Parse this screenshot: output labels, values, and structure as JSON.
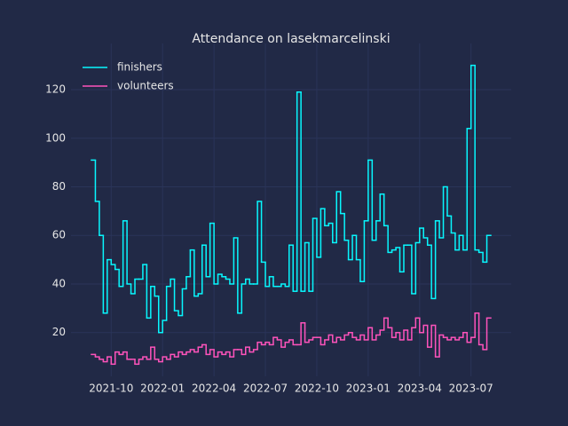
{
  "chart_data": {
    "type": "step",
    "title": "Attendance on lasekmarcelinski",
    "categories": [
      null,
      null,
      null,
      null,
      null,
      "2021-10",
      null,
      null,
      null,
      null,
      null,
      null,
      null,
      null,
      null,
      null,
      null,
      null,
      "2022-01",
      null,
      null,
      null,
      null,
      null,
      null,
      null,
      null,
      null,
      null,
      null,
      null,
      "2022-04",
      null,
      null,
      null,
      null,
      null,
      null,
      null,
      null,
      null,
      null,
      null,
      null,
      "2022-07",
      null,
      null,
      null,
      null,
      null,
      null,
      null,
      null,
      null,
      null,
      null,
      null,
      "2022-10",
      null,
      null,
      null,
      null,
      null,
      null,
      null,
      null,
      null,
      null,
      null,
      null,
      "2023-01",
      null,
      null,
      null,
      null,
      null,
      null,
      null,
      null,
      null,
      null,
      null,
      null,
      "2023-04",
      null,
      null,
      null,
      null,
      null,
      null,
      null,
      null,
      null,
      null,
      null,
      null,
      "2023-07",
      null,
      null,
      null,
      null
    ],
    "series": [
      {
        "name": "finishers",
        "color": "#08f7fe",
        "values": [
          91,
          74,
          60,
          28,
          50,
          48,
          46,
          39,
          66,
          40,
          36,
          42,
          42,
          48,
          26,
          39,
          35,
          20,
          25,
          39,
          42,
          29,
          27,
          38,
          43,
          54,
          35,
          36,
          56,
          43,
          65,
          40,
          44,
          43,
          42,
          40,
          59,
          28,
          40,
          42,
          40,
          40,
          74,
          49,
          39,
          43,
          39,
          39,
          40,
          39,
          56,
          37,
          119,
          37,
          57,
          37,
          67,
          51,
          71,
          64,
          65,
          57,
          78,
          69,
          58,
          50,
          60,
          50,
          41,
          66,
          91,
          58,
          66,
          77,
          64,
          53,
          54,
          55,
          45,
          56,
          56,
          36,
          57,
          63,
          59,
          56,
          34,
          66,
          59,
          80,
          68,
          61,
          54,
          60,
          54,
          104,
          130,
          54,
          53,
          49,
          60
        ]
      },
      {
        "name": "volunteers",
        "color": "#fe53bb",
        "values": [
          11,
          10,
          9,
          8,
          10,
          7,
          12,
          11,
          12,
          9,
          9,
          7,
          9,
          10,
          9,
          14,
          9,
          8,
          10,
          9,
          11,
          10,
          12,
          11,
          12,
          13,
          12,
          14,
          15,
          11,
          13,
          10,
          12,
          11,
          12,
          10,
          13,
          13,
          11,
          14,
          12,
          13,
          16,
          15,
          16,
          15,
          18,
          17,
          14,
          16,
          17,
          15,
          15,
          24,
          16,
          17,
          18,
          18,
          15,
          17,
          19,
          16,
          18,
          17,
          19,
          20,
          18,
          17,
          19,
          17,
          22,
          17,
          19,
          21,
          26,
          22,
          18,
          20,
          17,
          21,
          17,
          22,
          26,
          20,
          23,
          14,
          23,
          10,
          19,
          18,
          17,
          18,
          17,
          18,
          20,
          16,
          18,
          28,
          15,
          13,
          26
        ]
      }
    ],
    "ylim": [
      2,
      139
    ],
    "yticks": [
      20,
      40,
      60,
      80,
      100,
      120
    ],
    "grid": true,
    "legend": "upper left"
  }
}
